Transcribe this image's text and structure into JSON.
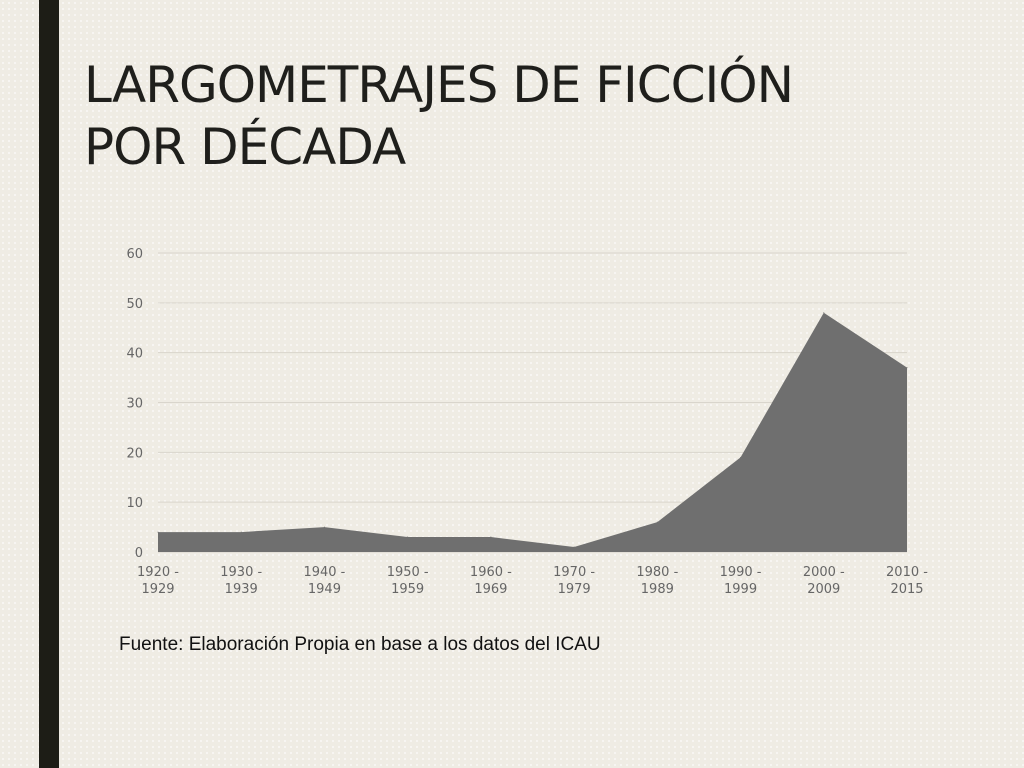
{
  "slide": {
    "title_line1": "LARGOMETRAJES DE FICCIÓN",
    "title_line2": "POR DÉCADA",
    "source": "Fuente: Elaboración Propia en base a los datos del ICAU"
  },
  "colors": {
    "background": "#efece4",
    "accent_bar": "#1d1d16",
    "area_fill": "#6f6f6f",
    "gridline": "#d9d5cc",
    "tick_text": "#666666"
  },
  "chart_data": {
    "type": "area",
    "categories": [
      [
        "1920 -",
        "1929"
      ],
      [
        "1930 -",
        "1939"
      ],
      [
        "1940 -",
        "1949"
      ],
      [
        "1950 -",
        "1959"
      ],
      [
        "1960 -",
        "1969"
      ],
      [
        "1970 -",
        "1979"
      ],
      [
        "1980 -",
        "1989"
      ],
      [
        "1990 -",
        "1999"
      ],
      [
        "2000 -",
        "2009"
      ],
      [
        "2010 -",
        "2015"
      ]
    ],
    "values": [
      4,
      4,
      5,
      3,
      3,
      1,
      6,
      19,
      48,
      37
    ],
    "ylim": [
      0,
      60
    ],
    "yticks": [
      "0",
      "10",
      "20",
      "30",
      "40",
      "50",
      "60"
    ],
    "grid": true,
    "legend": "none",
    "title": "",
    "xlabel": "",
    "ylabel": ""
  }
}
